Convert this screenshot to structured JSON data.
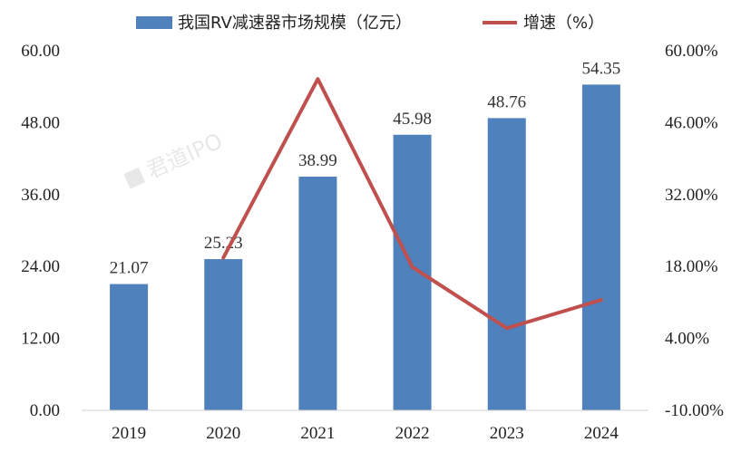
{
  "chart_data": {
    "type": "bar",
    "categories": [
      "2019",
      "2020",
      "2021",
      "2022",
      "2023",
      "2024"
    ],
    "series": [
      {
        "name": "我国RV减速器市场规模（亿元）",
        "type": "bar",
        "axis": "left",
        "color": "#4F81BD",
        "values": [
          21.07,
          25.23,
          38.99,
          45.98,
          48.76,
          54.35
        ],
        "data_labels": [
          "21.07",
          "25.23",
          "38.99",
          "45.98",
          "48.76",
          "54.35"
        ]
      },
      {
        "name": "增速（%）",
        "type": "line",
        "axis": "right",
        "color": "#C0504D",
        "x": [
          "2020",
          "2021",
          "2022",
          "2023",
          "2024"
        ],
        "values": [
          19.7,
          54.5,
          17.9,
          6.0,
          11.5
        ]
      }
    ],
    "y_left": {
      "ylim": [
        0,
        60
      ],
      "ticks": [
        "0.00",
        "12.00",
        "24.00",
        "36.00",
        "48.00",
        "60.00"
      ]
    },
    "y_right": {
      "ylim": [
        -10,
        60
      ],
      "ticks": [
        "-10.00%",
        "4.00%",
        "18.00%",
        "32.00%",
        "46.00%",
        "60.00%"
      ]
    },
    "legend_position": "top",
    "grid": false
  },
  "watermark": "君道IPO"
}
